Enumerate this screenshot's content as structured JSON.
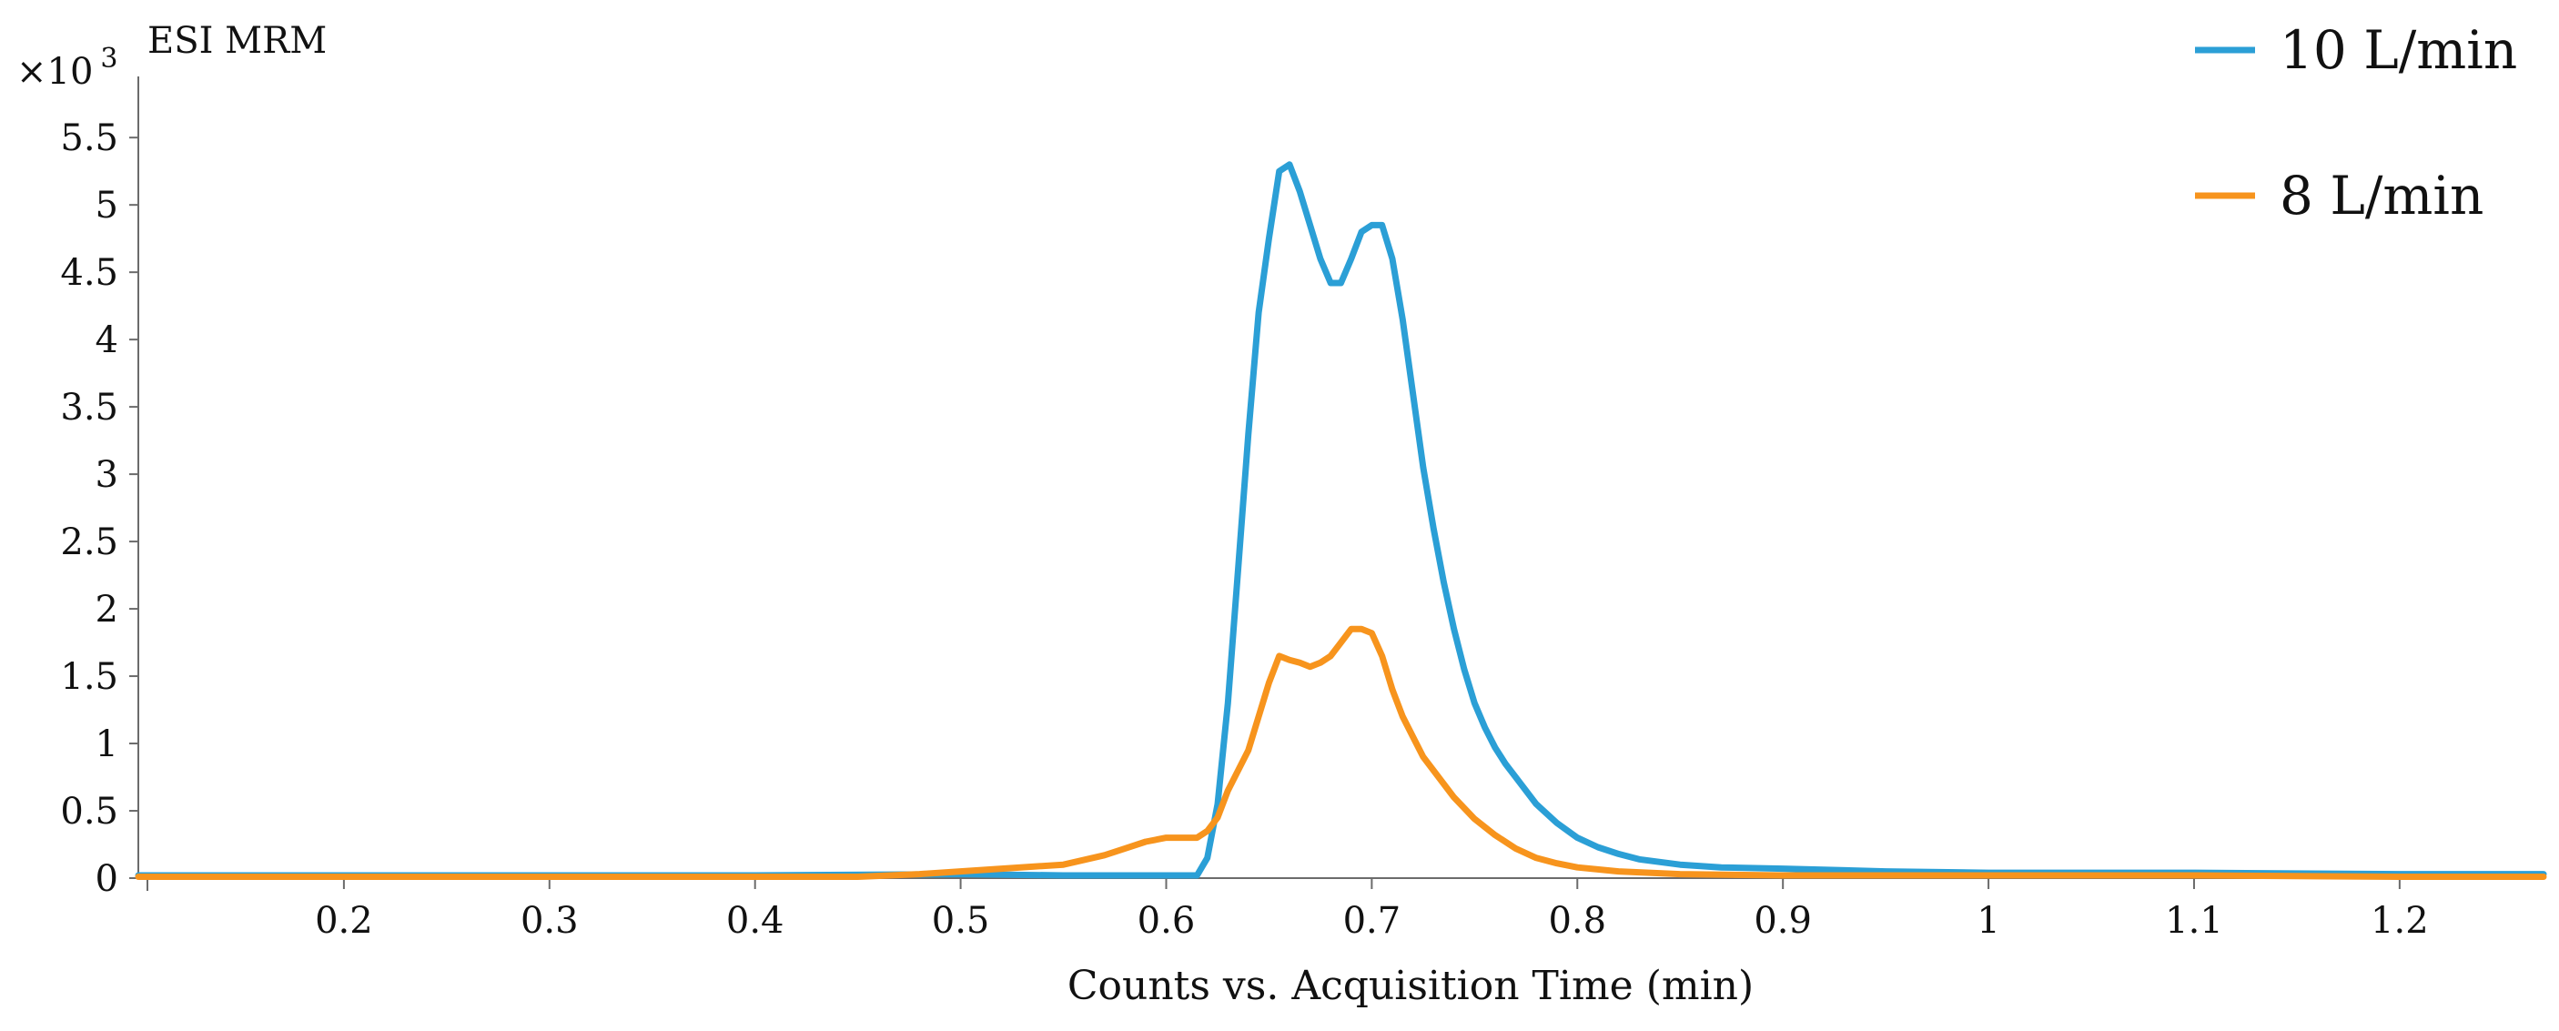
{
  "chart_data": {
    "type": "line",
    "title": "ESI MRM",
    "xlabel": "Counts vs. Acquisition Time (min)",
    "ylabel": "",
    "y_multiplier_label": "×10",
    "y_multiplier_exponent": "3",
    "xlim": [
      0.1,
      1.27
    ],
    "ylim": [
      0,
      5.9
    ],
    "x_ticks": [
      0.2,
      0.3,
      0.4,
      0.5,
      0.6,
      0.7,
      0.8,
      0.9,
      1,
      1.1,
      1.2
    ],
    "x_tick_labels": [
      "0.2",
      "0.3",
      "0.4",
      "0.5",
      "0.6",
      "0.7",
      "0.8",
      "0.9",
      "1",
      "1.1",
      "1.2"
    ],
    "y_ticks": [
      0,
      0.5,
      1,
      1.5,
      2,
      2.5,
      3,
      3.5,
      4,
      4.5,
      5,
      5.5
    ],
    "y_tick_labels": [
      "0",
      "0.5",
      "1",
      "1.5",
      "2",
      "2.5",
      "3",
      "3.5",
      "4",
      "4.5",
      "5",
      "5.5"
    ],
    "legend_position": "top-right",
    "series": [
      {
        "name": "10 L/min",
        "color": "#2b9fd6",
        "x": [
          0.1,
          0.2,
          0.3,
          0.4,
          0.5,
          0.55,
          0.6,
          0.615,
          0.62,
          0.625,
          0.63,
          0.635,
          0.64,
          0.645,
          0.65,
          0.655,
          0.66,
          0.665,
          0.67,
          0.675,
          0.68,
          0.685,
          0.69,
          0.695,
          0.7,
          0.705,
          0.71,
          0.715,
          0.72,
          0.725,
          0.73,
          0.735,
          0.74,
          0.745,
          0.75,
          0.755,
          0.76,
          0.765,
          0.77,
          0.78,
          0.79,
          0.8,
          0.81,
          0.82,
          0.83,
          0.85,
          0.87,
          0.9,
          0.95,
          1.0,
          1.1,
          1.2,
          1.27
        ],
        "values": [
          0.02,
          0.02,
          0.02,
          0.02,
          0.03,
          0.02,
          0.02,
          0.02,
          0.15,
          0.55,
          1.3,
          2.3,
          3.3,
          4.2,
          4.75,
          5.25,
          5.3,
          5.1,
          4.85,
          4.6,
          4.42,
          4.42,
          4.6,
          4.8,
          4.85,
          4.85,
          4.6,
          4.15,
          3.6,
          3.05,
          2.6,
          2.2,
          1.85,
          1.55,
          1.3,
          1.12,
          0.97,
          0.85,
          0.75,
          0.55,
          0.41,
          0.3,
          0.23,
          0.18,
          0.14,
          0.1,
          0.08,
          0.07,
          0.05,
          0.04,
          0.04,
          0.03,
          0.03
        ]
      },
      {
        "name": "8 L/min",
        "color": "#f7941d",
        "x": [
          0.1,
          0.2,
          0.3,
          0.4,
          0.45,
          0.48,
          0.5,
          0.52,
          0.55,
          0.57,
          0.58,
          0.59,
          0.6,
          0.605,
          0.615,
          0.62,
          0.625,
          0.63,
          0.64,
          0.645,
          0.65,
          0.655,
          0.66,
          0.665,
          0.67,
          0.675,
          0.68,
          0.685,
          0.69,
          0.695,
          0.7,
          0.705,
          0.71,
          0.715,
          0.72,
          0.725,
          0.73,
          0.735,
          0.74,
          0.75,
          0.76,
          0.77,
          0.78,
          0.79,
          0.8,
          0.82,
          0.85,
          0.9,
          1.0,
          1.1,
          1.2,
          1.27
        ],
        "values": [
          0.01,
          0.01,
          0.01,
          0.01,
          0.01,
          0.03,
          0.05,
          0.07,
          0.1,
          0.17,
          0.22,
          0.27,
          0.3,
          0.3,
          0.3,
          0.35,
          0.45,
          0.65,
          0.95,
          1.2,
          1.45,
          1.65,
          1.62,
          1.6,
          1.57,
          1.6,
          1.65,
          1.75,
          1.85,
          1.85,
          1.82,
          1.65,
          1.4,
          1.2,
          1.05,
          0.9,
          0.8,
          0.7,
          0.6,
          0.44,
          0.32,
          0.22,
          0.15,
          0.11,
          0.08,
          0.05,
          0.03,
          0.02,
          0.02,
          0.02,
          0.01,
          0.01
        ]
      }
    ]
  }
}
